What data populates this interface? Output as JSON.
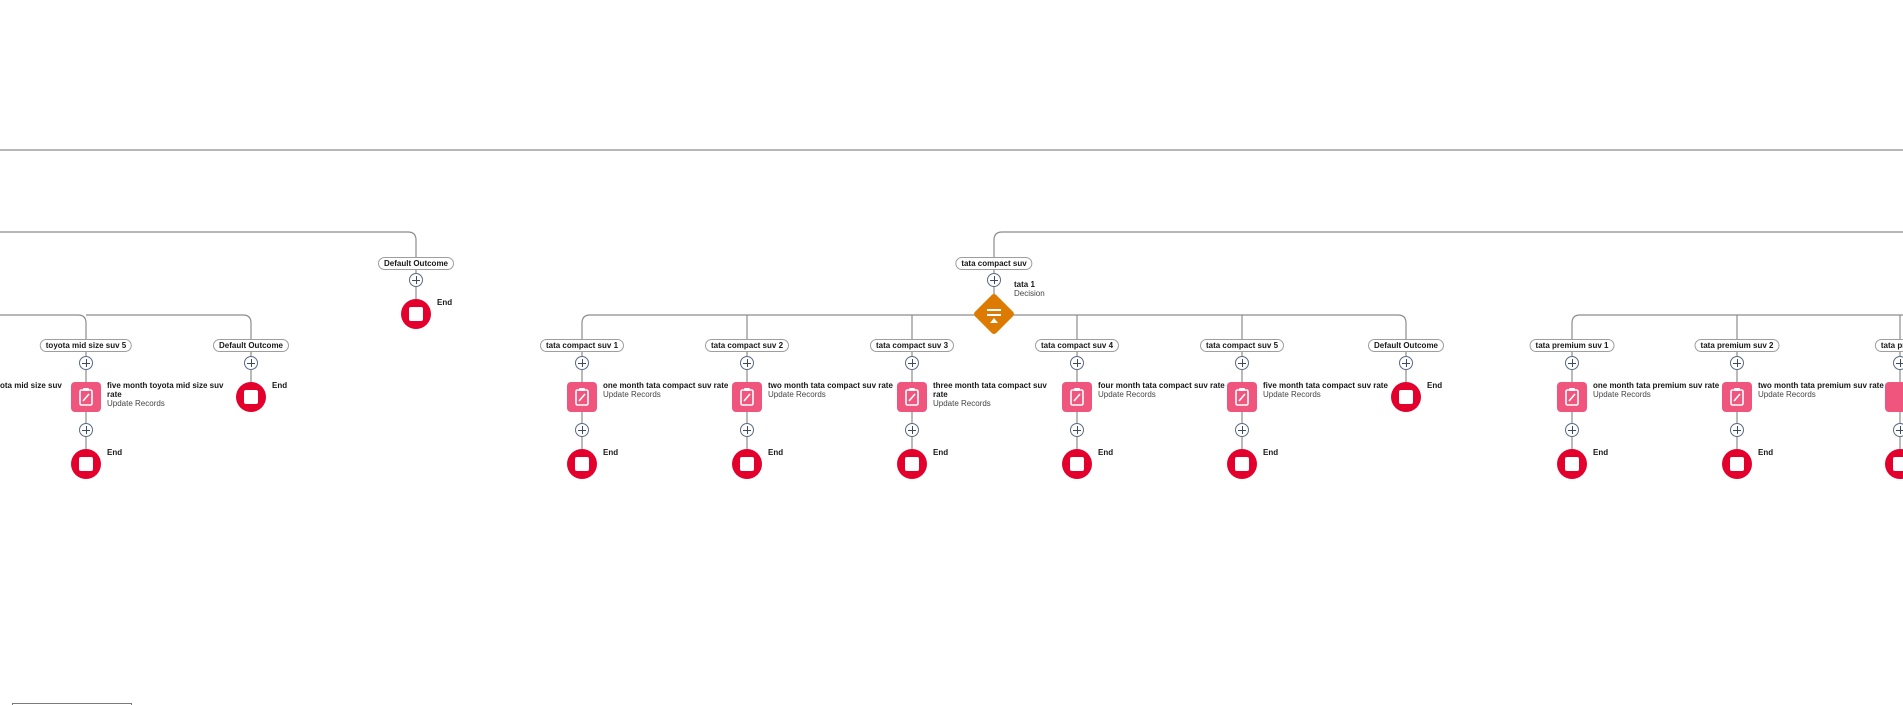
{
  "colors": {
    "connector": "#8c8c8c",
    "end_node": "#e3002c",
    "update_records_node": "#f0567d",
    "decision_node": "#dd7a01"
  },
  "icons": {
    "add": "plus-circle-icon",
    "end": "stop-icon",
    "update_records": "clipboard-edit-icon",
    "decision": "decision-icon"
  },
  "flow": {
    "default_outcome_top": {
      "label": "Default Outcome",
      "end_label": "End"
    },
    "toyota_branch": {
      "partial_record_title": "ota mid size suv",
      "outcome_5": {
        "label": "toyota mid size suv 5",
        "record_title_1": "five month toyota mid size suv",
        "record_title_2": "rate",
        "record_subtitle": "Update Records",
        "end_label": "End"
      },
      "default_outcome": {
        "label": "Default Outcome",
        "end_label": "End"
      }
    },
    "tata_compact": {
      "outcome_label": "tata compact suv",
      "decision": {
        "title": "tata 1",
        "subtitle": "Decision"
      },
      "branches": [
        {
          "label": "tata compact suv 1",
          "record_title_1": "one month tata compact suv rate",
          "record_title_2": "",
          "record_subtitle": "Update Records",
          "end_label": "End"
        },
        {
          "label": "tata compact suv 2",
          "record_title_1": "two month tata compact suv rate",
          "record_title_2": "",
          "record_subtitle": "Update Records",
          "end_label": "End"
        },
        {
          "label": "tata compact suv 3",
          "record_title_1": "three month tata compact suv",
          "record_title_2": "rate",
          "record_subtitle": "Update Records",
          "end_label": "End"
        },
        {
          "label": "tata compact suv 4",
          "record_title_1": "four month tata compact suv rate",
          "record_title_2": "",
          "record_subtitle": "Update Records",
          "end_label": "End"
        },
        {
          "label": "tata compact suv 5",
          "record_title_1": "five month tata compact suv rate",
          "record_title_2": "",
          "record_subtitle": "Update Records",
          "end_label": "End"
        }
      ],
      "default_outcome": {
        "label": "Default Outcome",
        "end_label": "End"
      }
    },
    "tata_premium": {
      "branches": [
        {
          "label": "tata premium suv 1",
          "record_title_1": "one month tata premium suv rate",
          "record_subtitle": "Update Records",
          "end_label": "End"
        },
        {
          "label": "tata premium suv 2",
          "record_title_1": "two month tata premium suv rate",
          "record_subtitle": "Update Records",
          "end_label": "End"
        },
        {
          "label": "tata premi"
        }
      ]
    }
  }
}
